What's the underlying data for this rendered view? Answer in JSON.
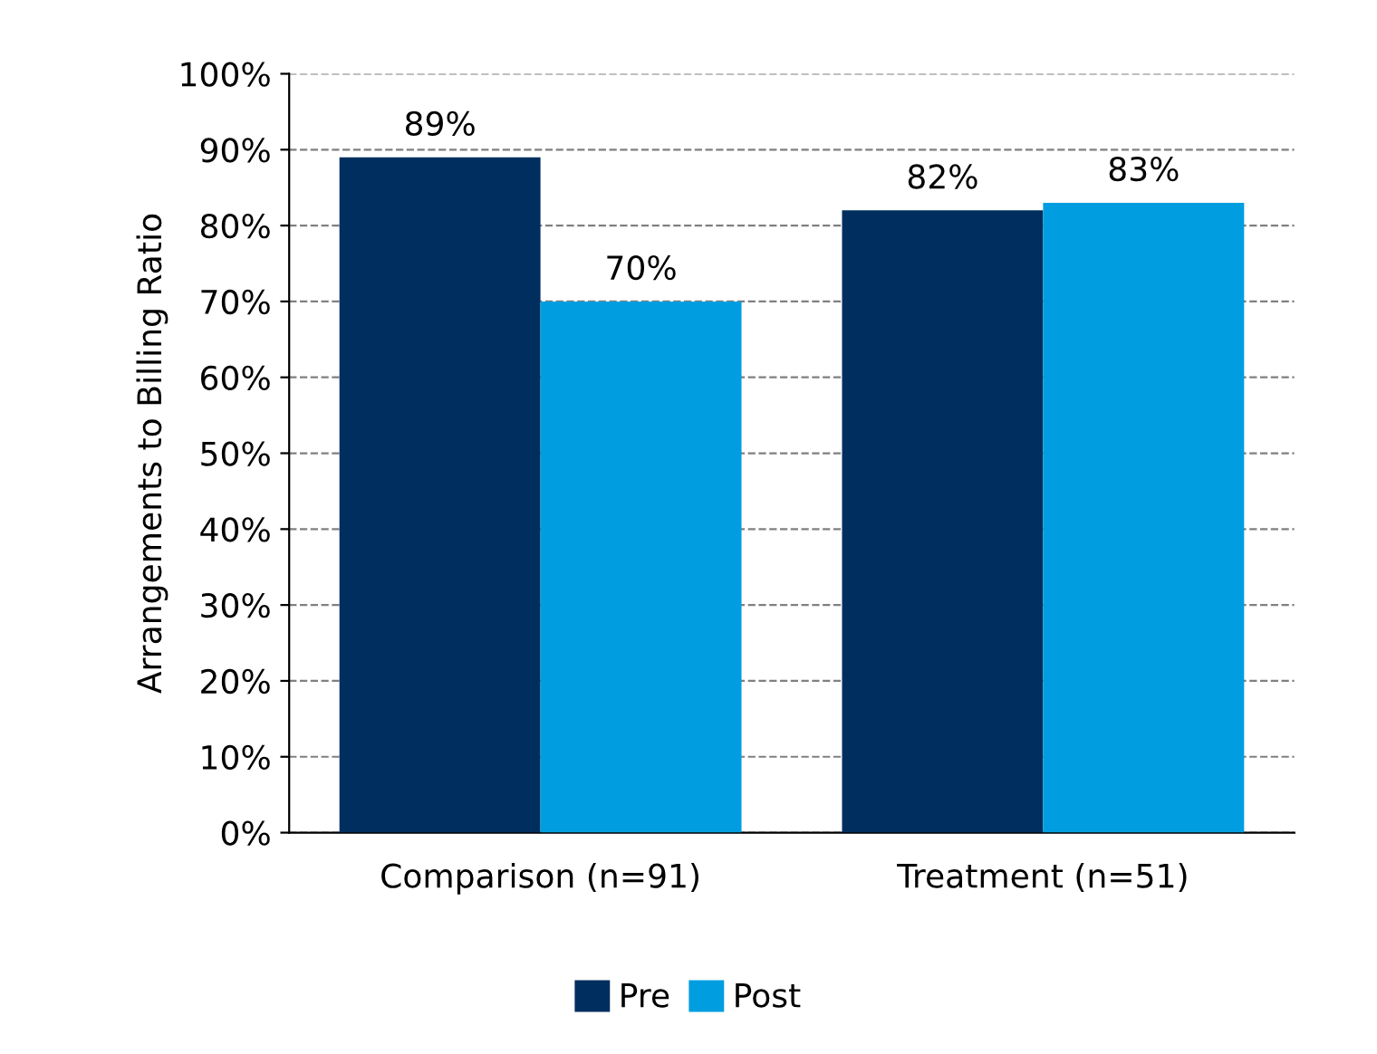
{
  "chart_data": {
    "type": "bar",
    "ylabel": "Arrangements to Billing Ratio",
    "categories": [
      "Comparison (n=91)",
      "Treatment (n=51)"
    ],
    "series": [
      {
        "name": "Pre",
        "color": "#002f5f",
        "values": [
          89,
          82
        ]
      },
      {
        "name": "Post",
        "color": "#009ee0",
        "values": [
          70,
          83
        ]
      }
    ],
    "ylim": [
      0,
      100
    ],
    "yticks": [
      {
        "value": 0,
        "label": "0%"
      },
      {
        "value": 10,
        "label": "10%"
      },
      {
        "value": 20,
        "label": "20%"
      },
      {
        "value": 30,
        "label": "30%"
      },
      {
        "value": 40,
        "label": "40%"
      },
      {
        "value": 50,
        "label": "50%"
      },
      {
        "value": 60,
        "label": "60%"
      },
      {
        "value": 70,
        "label": "70%"
      },
      {
        "value": 80,
        "label": "80%"
      },
      {
        "value": 90,
        "label": "90%"
      },
      {
        "value": 100,
        "label": "100%"
      }
    ],
    "value_labels": [
      [
        "89%",
        "82%"
      ],
      [
        "70%",
        "83%"
      ]
    ],
    "grid": "y",
    "legend": "bottom"
  }
}
